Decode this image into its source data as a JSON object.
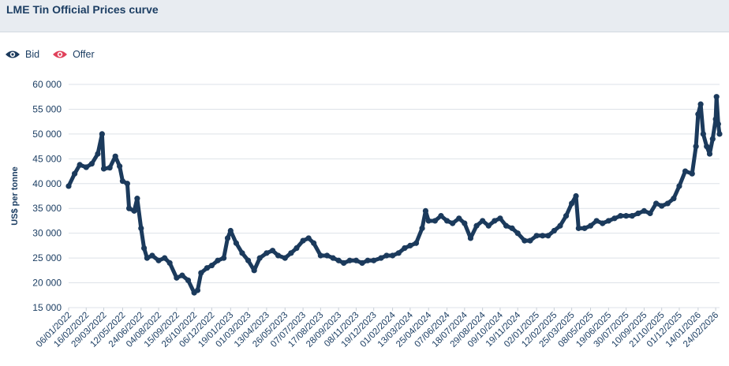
{
  "header": {
    "title": "LME Tin Official Prices curve"
  },
  "legend": {
    "items": [
      {
        "label": "Bid",
        "icon": "eye-icon",
        "color": "#1b3a5c"
      },
      {
        "label": "Offer",
        "icon": "eye-icon",
        "color": "#e0405a"
      }
    ]
  },
  "chart_data": {
    "type": "line",
    "ylabel": "US$ per tonne",
    "ylim": [
      15000,
      60000
    ],
    "yticks": [
      15000,
      20000,
      25000,
      30000,
      35000,
      40000,
      45000,
      50000,
      55000,
      60000
    ],
    "ytick_labels": [
      "15 000",
      "20 000",
      "25 000",
      "30 000",
      "35 000",
      "40 000",
      "45 000",
      "50 000",
      "55 000",
      "60 000"
    ],
    "x_start": "06/01/2022",
    "x_end": "05/03/2026",
    "xtick_labels": [
      "06/01/2022",
      "16/02/2022",
      "29/03/2022",
      "12/05/2022",
      "24/06/2022",
      "04/08/2022",
      "15/09/2022",
      "26/10/2022",
      "06/12/2022",
      "19/01/2023",
      "01/03/2023",
      "13/04/2023",
      "26/05/2023",
      "07/07/2023",
      "17/08/2023",
      "28/09/2023",
      "08/11/2023",
      "19/12/2023",
      "01/02/2024",
      "13/03/2024",
      "25/04/2024",
      "07/06/2024",
      "18/07/2024",
      "29/08/2024",
      "09/10/2024",
      "19/11/2024",
      "02/01/2025",
      "12/02/2025",
      "25/03/2025",
      "08/05/2025",
      "19/06/2025",
      "30/07/2025",
      "10/09/2025",
      "21/10/2025",
      "01/12/2025",
      "14/01/2026",
      "24/02/2026"
    ],
    "grid": true,
    "series": [
      {
        "name": "Bid",
        "color": "#1b3a5c",
        "points": [
          [
            "06/01/2022",
            39500
          ],
          [
            "20/01/2022",
            42000
          ],
          [
            "01/02/2022",
            43800
          ],
          [
            "16/02/2022",
            43300
          ],
          [
            "01/03/2022",
            44000
          ],
          [
            "15/03/2022",
            46000
          ],
          [
            "25/03/2022",
            50000
          ],
          [
            "29/03/2022",
            43000
          ],
          [
            "12/04/2022",
            43200
          ],
          [
            "25/04/2022",
            45500
          ],
          [
            "05/05/2022",
            43500
          ],
          [
            "12/05/2022",
            40500
          ],
          [
            "23/05/2022",
            40000
          ],
          [
            "27/05/2022",
            35000
          ],
          [
            "08/06/2022",
            34500
          ],
          [
            "15/06/2022",
            37000
          ],
          [
            "24/06/2022",
            31000
          ],
          [
            "01/07/2022",
            27000
          ],
          [
            "08/07/2022",
            25000
          ],
          [
            "20/07/2022",
            25500
          ],
          [
            "04/08/2022",
            24500
          ],
          [
            "18/08/2022",
            25000
          ],
          [
            "30/08/2022",
            24000
          ],
          [
            "15/09/2022",
            21000
          ],
          [
            "28/09/2022",
            21500
          ],
          [
            "12/10/2022",
            20500
          ],
          [
            "26/10/2022",
            18000
          ],
          [
            "03/11/2022",
            18500
          ],
          [
            "11/11/2022",
            22000
          ],
          [
            "25/11/2022",
            23000
          ],
          [
            "06/12/2022",
            23500
          ],
          [
            "20/12/2022",
            24500
          ],
          [
            "03/01/2023",
            25000
          ],
          [
            "12/01/2023",
            29000
          ],
          [
            "19/01/2023",
            30500
          ],
          [
            "01/02/2023",
            28000
          ],
          [
            "15/02/2023",
            26000
          ],
          [
            "01/03/2023",
            24500
          ],
          [
            "15/03/2023",
            22500
          ],
          [
            "28/03/2023",
            25000
          ],
          [
            "13/04/2023",
            26000
          ],
          [
            "27/04/2023",
            26500
          ],
          [
            "10/05/2023",
            25500
          ],
          [
            "26/05/2023",
            25000
          ],
          [
            "09/06/2023",
            26000
          ],
          [
            "22/06/2023",
            27000
          ],
          [
            "07/07/2023",
            28500
          ],
          [
            "20/07/2023",
            29000
          ],
          [
            "01/08/2023",
            28000
          ],
          [
            "17/08/2023",
            25500
          ],
          [
            "01/09/2023",
            25500
          ],
          [
            "15/09/2023",
            25000
          ],
          [
            "28/09/2023",
            24500
          ],
          [
            "10/10/2023",
            24000
          ],
          [
            "24/10/2023",
            24500
          ],
          [
            "08/11/2023",
            24500
          ],
          [
            "22/11/2023",
            24000
          ],
          [
            "05/12/2023",
            24500
          ],
          [
            "19/12/2023",
            24500
          ],
          [
            "05/01/2024",
            25000
          ],
          [
            "18/01/2024",
            25500
          ],
          [
            "01/02/2024",
            25500
          ],
          [
            "15/02/2024",
            26000
          ],
          [
            "29/02/2024",
            27000
          ],
          [
            "13/03/2024",
            27500
          ],
          [
            "27/03/2024",
            28000
          ],
          [
            "10/04/2024",
            31000
          ],
          [
            "18/04/2024",
            34500
          ],
          [
            "25/04/2024",
            32500
          ],
          [
            "10/05/2024",
            32500
          ],
          [
            "24/05/2024",
            33500
          ],
          [
            "07/06/2024",
            32500
          ],
          [
            "20/06/2024",
            32000
          ],
          [
            "05/07/2024",
            33000
          ],
          [
            "18/07/2024",
            32000
          ],
          [
            "01/08/2024",
            29000
          ],
          [
            "15/08/2024",
            31500
          ],
          [
            "29/08/2024",
            32500
          ],
          [
            "12/09/2024",
            31500
          ],
          [
            "26/09/2024",
            32500
          ],
          [
            "09/10/2024",
            33000
          ],
          [
            "23/10/2024",
            31500
          ],
          [
            "06/11/2024",
            31000
          ],
          [
            "19/11/2024",
            30000
          ],
          [
            "05/12/2024",
            28500
          ],
          [
            "18/12/2024",
            28500
          ],
          [
            "02/01/2025",
            29500
          ],
          [
            "16/01/2025",
            29500
          ],
          [
            "29/01/2025",
            29500
          ],
          [
            "12/02/2025",
            30500
          ],
          [
            "26/02/2025",
            31500
          ],
          [
            "12/03/2025",
            33500
          ],
          [
            "25/03/2025",
            36000
          ],
          [
            "04/04/2025",
            37500
          ],
          [
            "10/04/2025",
            31000
          ],
          [
            "24/04/2025",
            31000
          ],
          [
            "08/05/2025",
            31500
          ],
          [
            "22/05/2025",
            32500
          ],
          [
            "05/06/2025",
            32000
          ],
          [
            "19/06/2025",
            32500
          ],
          [
            "03/07/2025",
            33000
          ],
          [
            "17/07/2025",
            33500
          ],
          [
            "30/07/2025",
            33500
          ],
          [
            "13/08/2025",
            33500
          ],
          [
            "27/08/2025",
            34000
          ],
          [
            "10/09/2025",
            34500
          ],
          [
            "24/09/2025",
            34000
          ],
          [
            "08/10/2025",
            36000
          ],
          [
            "21/10/2025",
            35500
          ],
          [
            "04/11/2025",
            36000
          ],
          [
            "18/11/2025",
            37000
          ],
          [
            "01/12/2025",
            39500
          ],
          [
            "15/12/2025",
            42500
          ],
          [
            "31/12/2025",
            42000
          ],
          [
            "09/01/2026",
            47500
          ],
          [
            "14/01/2026",
            54000
          ],
          [
            "20/01/2026",
            56000
          ],
          [
            "26/01/2026",
            50000
          ],
          [
            "03/02/2026",
            47500
          ],
          [
            "10/02/2026",
            46000
          ],
          [
            "17/02/2026",
            49000
          ],
          [
            "24/02/2026",
            53000
          ],
          [
            "26/02/2026",
            57500
          ],
          [
            "02/03/2026",
            52000
          ],
          [
            "05/03/2026",
            50000
          ]
        ]
      },
      {
        "name": "Offer",
        "color": "#e0405a"
      }
    ]
  }
}
